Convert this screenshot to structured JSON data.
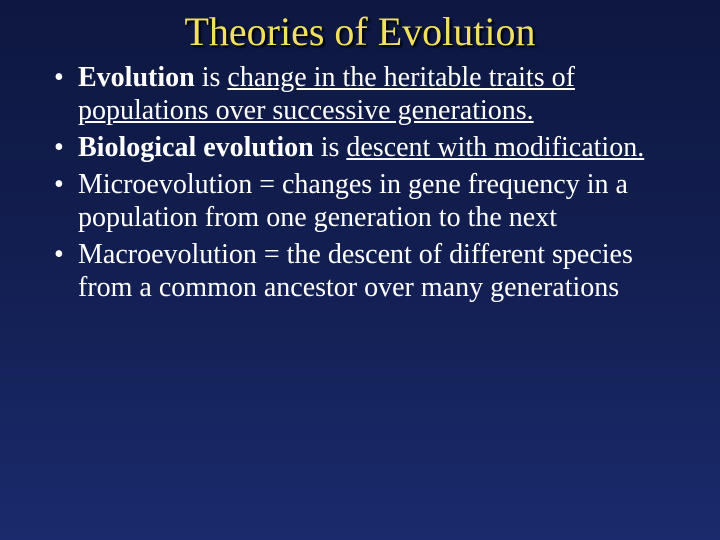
{
  "slide": {
    "title": "Theories of Evolution",
    "title_color": "#f0e060",
    "title_fontsize": 40,
    "background_gradient": [
      "#0d1740",
      "#131f52",
      "#1a2a6c"
    ],
    "body_color": "#ffffff",
    "body_fontsize": 28,
    "font_family": "Times New Roman",
    "bullets": [
      {
        "bold": "Evolution",
        "plain": " is ",
        "underline": "change in the heritable traits of populations over successive generations."
      },
      {
        "bold": "Biological evolution",
        "plain": " is ",
        "underline": "descent with modification."
      },
      {
        "full": "Microevolution = changes in gene frequency in a population from one generation to the next"
      },
      {
        "full": "Macroevolution = the descent of different species from a common ancestor over many generations"
      }
    ]
  }
}
